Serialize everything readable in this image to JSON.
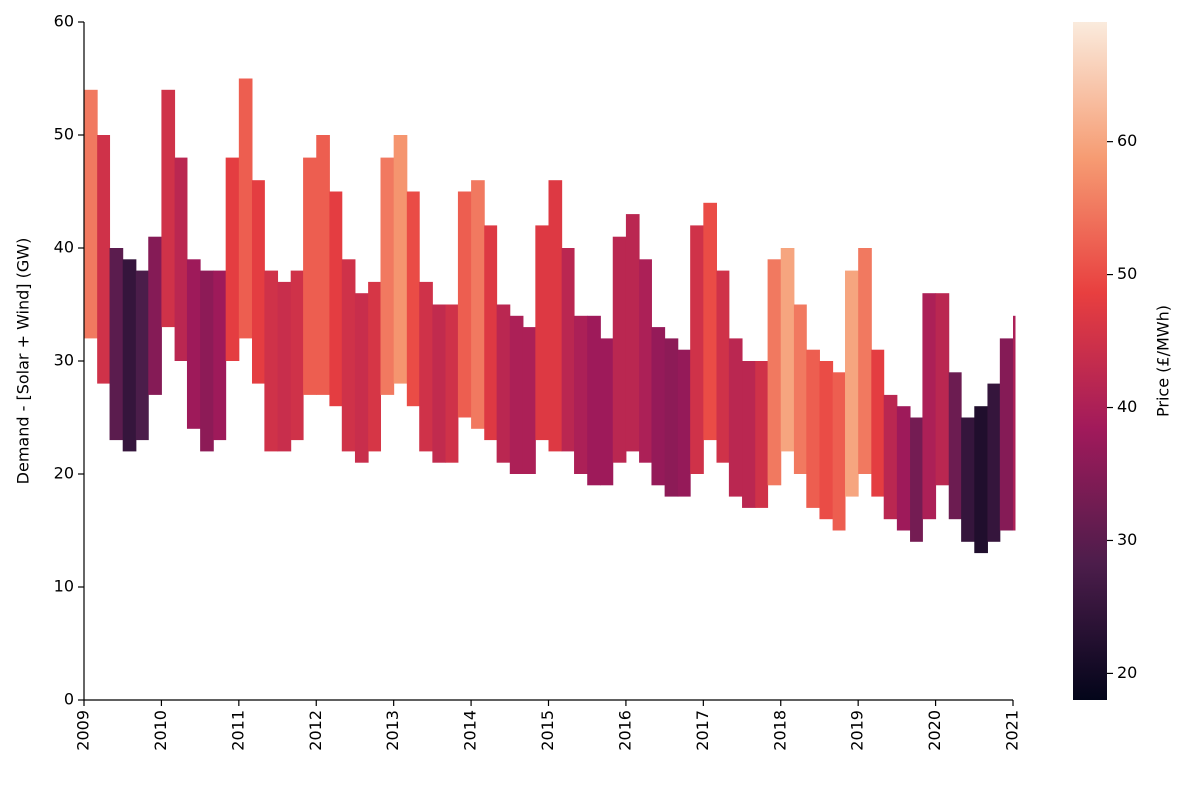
{
  "chart_data": {
    "type": "band",
    "y_label": "Demand - [Solar + Wind] (GW)",
    "colorbar_label": "Price (£/MWh)",
    "xlim": [
      2009,
      2021
    ],
    "xticks": [
      2009,
      2010,
      2011,
      2012,
      2013,
      2014,
      2015,
      2016,
      2017,
      2018,
      2019,
      2020,
      2021
    ],
    "ylim": [
      0,
      60
    ],
    "yticks": [
      0,
      10,
      20,
      30,
      40,
      50,
      60
    ],
    "clim": [
      18,
      69
    ],
    "cticks": [
      20,
      30,
      40,
      50,
      60
    ],
    "colormap": [
      "#03051a",
      "#4c1d4b",
      "#a11a5b",
      "#e83f3f",
      "#f69c73",
      "#faebdd"
    ],
    "x": [
      2009,
      2009.17,
      2009.33,
      2009.5,
      2009.67,
      2009.83,
      2010,
      2010.17,
      2010.33,
      2010.5,
      2010.67,
      2010.83,
      2011,
      2011.17,
      2011.33,
      2011.5,
      2011.67,
      2011.83,
      2012,
      2012.17,
      2012.33,
      2012.5,
      2012.67,
      2012.83,
      2013,
      2013.17,
      2013.33,
      2013.5,
      2013.67,
      2013.83,
      2014,
      2014.17,
      2014.33,
      2014.5,
      2014.67,
      2014.83,
      2015,
      2015.17,
      2015.33,
      2015.5,
      2015.67,
      2015.83,
      2016,
      2016.17,
      2016.33,
      2016.5,
      2016.67,
      2016.83,
      2017,
      2017.17,
      2017.33,
      2017.5,
      2017.67,
      2017.83,
      2018,
      2018.17,
      2018.33,
      2018.5,
      2018.67,
      2018.83,
      2019,
      2019.17,
      2019.33,
      2019.5,
      2019.67,
      2019.83,
      2020,
      2020.17,
      2020.33,
      2020.5,
      2020.67,
      2020.83,
      2021
    ],
    "upper": [
      54,
      50,
      40,
      39,
      38,
      41,
      54,
      48,
      39,
      38,
      38,
      48,
      55,
      46,
      38,
      37,
      38,
      48,
      50,
      45,
      39,
      36,
      37,
      48,
      50,
      45,
      37,
      35,
      35,
      45,
      46,
      42,
      35,
      34,
      33,
      42,
      46,
      40,
      34,
      34,
      32,
      41,
      43,
      39,
      33,
      32,
      31,
      42,
      44,
      38,
      32,
      30,
      30,
      39,
      40,
      35,
      31,
      30,
      29,
      38,
      40,
      31,
      27,
      26,
      25,
      36,
      36,
      29,
      25,
      26,
      28,
      32,
      34
    ],
    "lower": [
      32,
      28,
      23,
      22,
      23,
      27,
      33,
      30,
      24,
      22,
      23,
      30,
      32,
      28,
      22,
      22,
      23,
      27,
      27,
      26,
      22,
      21,
      22,
      27,
      28,
      26,
      22,
      21,
      21,
      25,
      24,
      23,
      21,
      20,
      20,
      23,
      22,
      22,
      20,
      19,
      19,
      21,
      22,
      21,
      19,
      18,
      18,
      20,
      23,
      21,
      18,
      17,
      17,
      19,
      22,
      20,
      17,
      16,
      15,
      18,
      20,
      18,
      16,
      15,
      14,
      16,
      19,
      16,
      14,
      13,
      14,
      15,
      15
    ],
    "price": [
      55,
      45,
      30,
      25,
      28,
      35,
      45,
      42,
      38,
      36,
      38,
      48,
      52,
      48,
      45,
      44,
      45,
      52,
      52,
      48,
      45,
      44,
      46,
      55,
      58,
      50,
      45,
      43,
      45,
      52,
      55,
      47,
      42,
      40,
      40,
      47,
      47,
      42,
      40,
      38,
      38,
      42,
      42,
      40,
      37,
      36,
      37,
      45,
      50,
      45,
      42,
      42,
      45,
      55,
      60,
      55,
      52,
      50,
      52,
      60,
      55,
      48,
      42,
      38,
      33,
      40,
      42,
      32,
      25,
      22,
      25,
      35,
      40
    ]
  }
}
